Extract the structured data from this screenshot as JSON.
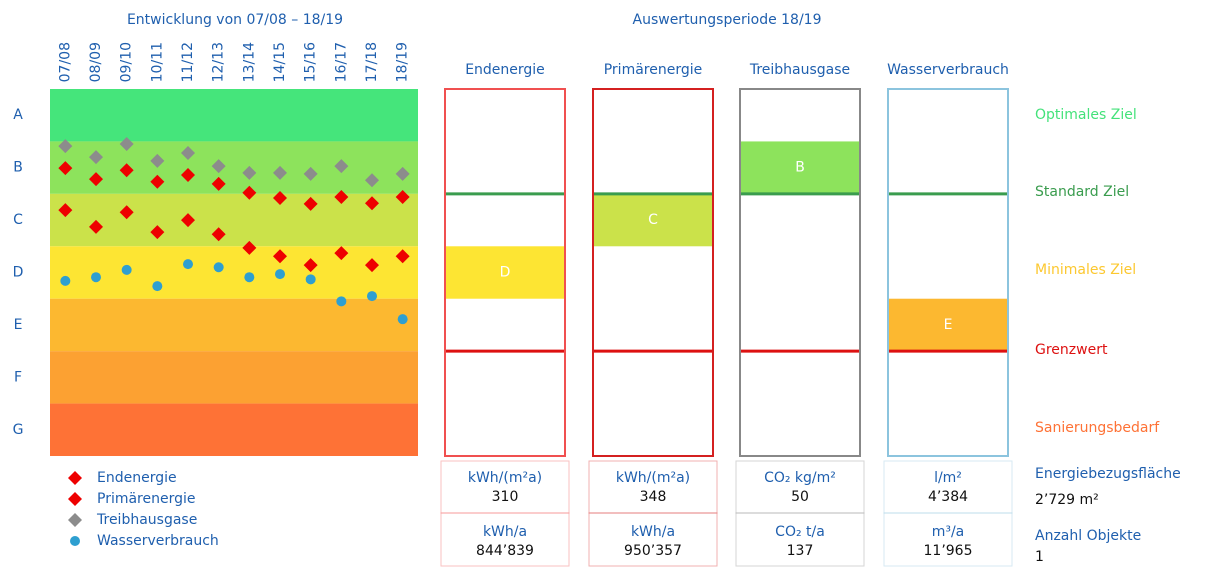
{
  "chart_data": {
    "type": "scatter",
    "title": "Entwicklung von 07/08 – 18/19",
    "categories": [
      "07/08",
      "08/09",
      "09/10",
      "10/11",
      "11/12",
      "12/13",
      "13/14",
      "14/15",
      "15/16",
      "16/17",
      "17/18",
      "18/19"
    ],
    "ylim": [
      7,
      0
    ],
    "yticks": [
      {
        "value": 0.5,
        "label": "A"
      },
      {
        "value": 1.5,
        "label": "B"
      },
      {
        "value": 2.5,
        "label": "C"
      },
      {
        "value": 3.5,
        "label": "D"
      },
      {
        "value": 4.5,
        "label": "E"
      },
      {
        "value": 5.5,
        "label": "F"
      },
      {
        "value": 6.5,
        "label": "G"
      }
    ],
    "band_colors": [
      "#45e57b",
      "#8de35c",
      "#cbe24a",
      "#fde533",
      "#fcb830",
      "#fca132",
      "#fe7236"
    ],
    "series": [
      {
        "name": "Endenergie",
        "color": "#ee0000",
        "marker": "diamond",
        "values": [
          2.31,
          2.63,
          2.35,
          2.73,
          2.5,
          2.77,
          3.03,
          3.19,
          3.36,
          3.13,
          3.36,
          3.19
        ]
      },
      {
        "name": "Primärenergie",
        "color": "#ee0000",
        "marker": "diamond",
        "values": [
          1.51,
          1.72,
          1.55,
          1.77,
          1.64,
          1.81,
          1.98,
          2.08,
          2.19,
          2.06,
          2.18,
          2.06
        ]
      },
      {
        "name": "Treibhausgase",
        "color": "#8c8c8c",
        "marker": "diamond",
        "values": [
          1.09,
          1.3,
          1.05,
          1.37,
          1.22,
          1.47,
          1.6,
          1.6,
          1.62,
          1.47,
          1.74,
          1.62
        ]
      },
      {
        "name": "Wasserverbrauch",
        "color": "#2e9fd0",
        "marker": "circle",
        "values": [
          3.66,
          3.59,
          3.45,
          3.76,
          3.34,
          3.4,
          3.59,
          3.53,
          3.63,
          4.05,
          3.95,
          4.39
        ]
      }
    ]
  },
  "period_title": "Auswertungsperiode 18/19",
  "panels": [
    {
      "title": "Endenergie",
      "border": "#f05050",
      "rating": "D",
      "unit": "kWh/(m²a)",
      "value": "310",
      "unit2": "kWh/a",
      "value2": "844’839"
    },
    {
      "title": "Primärenergie",
      "border": "#d42020",
      "rating": "C",
      "unit": "kWh/(m²a)",
      "value": "348",
      "unit2": "kWh/a",
      "value2": "950’357"
    },
    {
      "title": "Treibhausgase",
      "border": "#888888",
      "rating": "B",
      "unit": "CO₂ kg/m²",
      "value": "50",
      "unit2": "CO₂ t/a",
      "value2": "137"
    },
    {
      "title": "Wasserverbrauch",
      "border": "#8cc4de",
      "rating": "E",
      "unit": "l/m²",
      "value": "4’384",
      "unit2": "m³/a",
      "value2": "11’965"
    }
  ],
  "targets": [
    {
      "label": "Optimales Ziel",
      "color": "#44e27a"
    },
    {
      "label": "Standard Ziel",
      "color": "#3a9c4e"
    },
    {
      "label": "Minimales Ziel",
      "color": "#fcc830"
    },
    {
      "label": "Grenzwert",
      "color": "#dd1111"
    },
    {
      "label": "Sanierungsbedarf",
      "color": "#fe7236"
    }
  ],
  "info": [
    {
      "label": "Energiebezugsfläche",
      "value": "2’729 m²"
    },
    {
      "label": "Anzahl Objekte",
      "value": "1"
    }
  ]
}
